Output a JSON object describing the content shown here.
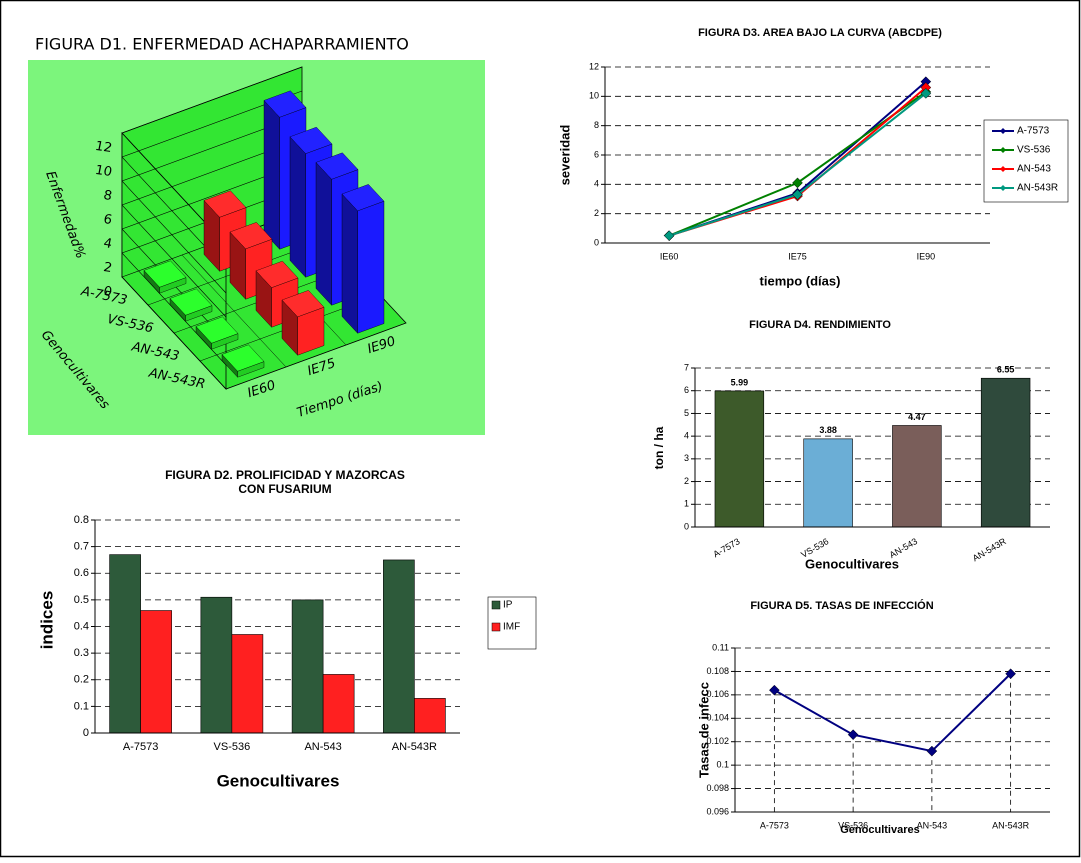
{
  "chart_data": [
    {
      "type": "bar3d",
      "title": "FIGURA D1. ENFERMEDAD ACHAPARRAMIENTO",
      "categories": [
        "A-7573",
        "VS-536",
        "AN-543",
        "AN-543R"
      ],
      "series": [
        {
          "name": "IE60",
          "color": "#22cc22",
          "values": [
            0.5,
            0.5,
            0.5,
            0.5
          ]
        },
        {
          "name": "IE75",
          "color": "#ff2222",
          "values": [
            4.5,
            4.2,
            3.3,
            3.2
          ]
        },
        {
          "name": "IE90",
          "color": "#1a1aff",
          "values": [
            11,
            10.3,
            10.5,
            10.2
          ]
        }
      ],
      "ylim": [
        0,
        12
      ],
      "yticks": [
        0,
        2,
        4,
        6,
        8,
        10,
        12
      ],
      "ylabel": "Enfermedad%",
      "zlabel": "Genocultivares",
      "xlabel": "Tiempo (días)"
    },
    {
      "type": "bar",
      "title": "FIGURA D2. PROLIFICIDAD Y MAZORCAS CON FUSARIUM",
      "categories": [
        "A-7573",
        "VS-536",
        "AN-543",
        "AN-543R"
      ],
      "series": [
        {
          "name": "IP",
          "color": "#2d5a3a",
          "values": [
            0.67,
            0.51,
            0.5,
            0.65
          ]
        },
        {
          "name": "IMF",
          "color": "#ff2020",
          "values": [
            0.46,
            0.37,
            0.22,
            0.13
          ]
        }
      ],
      "ylim": [
        0,
        0.8
      ],
      "yticks": [
        0,
        0.1,
        0.2,
        0.3,
        0.4,
        0.5,
        0.6,
        0.7,
        0.8
      ],
      "ylabel": "indices",
      "xlabel": "Genocultivares",
      "grid": true
    },
    {
      "type": "line",
      "title": "FIGURA D3. AREA BAJO LA CURVA (ABCDPE)",
      "categories": [
        "IE60",
        "IE75",
        "IE90"
      ],
      "series": [
        {
          "name": "A-7573",
          "color": "#000080",
          "values": [
            0.5,
            3.4,
            11
          ]
        },
        {
          "name": "VS-536",
          "color": "#008000",
          "values": [
            0.5,
            4.1,
            10.3
          ]
        },
        {
          "name": "AN-543",
          "color": "#ff0000",
          "values": [
            0.5,
            3.2,
            10.6
          ]
        },
        {
          "name": "AN-543R",
          "color": "#009980",
          "values": [
            0.5,
            3.3,
            10.2
          ]
        }
      ],
      "ylim": [
        0,
        12
      ],
      "yticks": [
        0,
        2,
        4,
        6,
        8,
        10,
        12
      ],
      "ylabel": "severidad",
      "xlabel": "tiempo (días)",
      "grid": true
    },
    {
      "type": "bar",
      "title": "FIGURA D4. RENDIMIENTO",
      "categories": [
        "A-7573",
        "VS-536",
        "AN-543",
        "AN-543R"
      ],
      "series": [
        {
          "colors": [
            "#3d5a2a",
            "#6baed6",
            "#7a5e5a",
            "#2f4a3c"
          ],
          "values": [
            5.99,
            3.88,
            4.47,
            6.55
          ]
        }
      ],
      "ylim": [
        0,
        7
      ],
      "yticks": [
        0,
        1,
        2,
        3,
        4,
        5,
        6,
        7
      ],
      "ylabel": "ton / ha",
      "xlabel": "Genocultivares",
      "grid": true
    },
    {
      "type": "line",
      "title": "FIGURA D5. TASAS DE INFECCIÓN",
      "categories": [
        "A-7573",
        "VS-536",
        "AN-543",
        "AN-543R"
      ],
      "series": [
        {
          "color": "#000080",
          "values": [
            0.1064,
            0.1026,
            0.1012,
            0.1078
          ]
        }
      ],
      "ylim": [
        0.096,
        0.11
      ],
      "yticks": [
        0.096,
        0.098,
        0.1,
        0.102,
        0.104,
        0.106,
        0.108,
        0.11
      ],
      "ylabel": "Tasas de infecc",
      "xlabel": "Genocultivares",
      "grid": true
    }
  ]
}
